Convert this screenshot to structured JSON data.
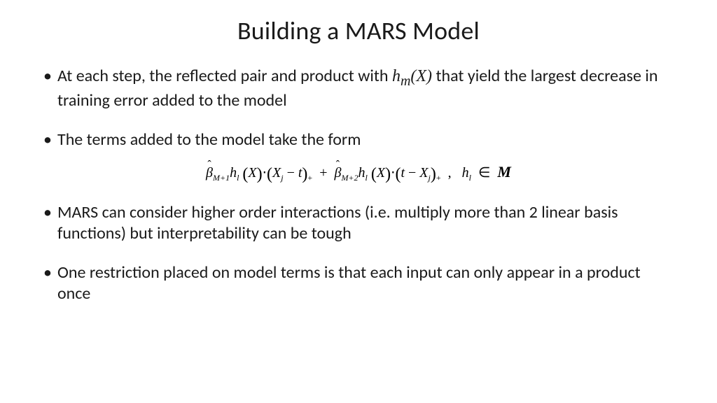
{
  "slide": {
    "title": "Building a MARS Model",
    "title_fontsize": 36,
    "title_color": "#1a1a1a",
    "background_color": "#ffffff",
    "body_fontsize": 24,
    "body_color": "#1a1a1a",
    "font_family": "Calibri",
    "bullets": {
      "b1_pre": "At each step, the reflected pair and product with ",
      "b1_math": "h",
      "b1_math_sub": "m",
      "b1_math_paren": "(X)",
      "b1_post": " that yield the largest decrease in training error added to the model",
      "b2": "The terms added to the model take the form",
      "b3": "MARS can consider higher order interactions (i.e. multiply more than 2 linear basis functions) but interpretability can be tough",
      "b4": "One restriction placed on model terms is that each input can only appear in a product once"
    },
    "formula": {
      "beta1_sub": "M+1",
      "h": "h",
      "l": "l",
      "X": "X",
      "Xj": "X",
      "j": "j",
      "t": "t",
      "beta2_sub": "M+2",
      "in": "∈",
      "M_set": "M",
      "formula_fontsize": 20,
      "formula_font": "Times New Roman"
    }
  }
}
